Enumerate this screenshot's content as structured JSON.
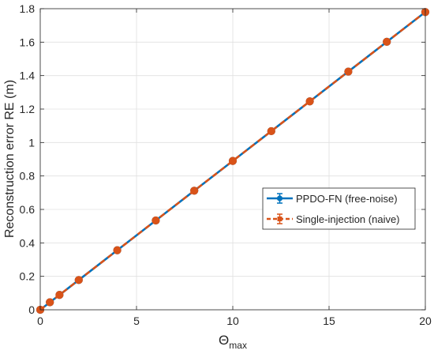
{
  "chart_data": {
    "type": "line",
    "xlabel": "Θ",
    "xlabel_sub": "max",
    "ylabel": "Reconstruction error RE (m)",
    "xlim": [
      0,
      20
    ],
    "ylim": [
      0,
      1.8
    ],
    "xticks": [
      0,
      5,
      10,
      15,
      20
    ],
    "xtick_labels": [
      "0",
      "5",
      "10",
      "15",
      "20"
    ],
    "yticks": [
      0,
      0.2,
      0.4,
      0.6,
      0.8,
      1,
      1.2,
      1.4,
      1.6,
      1.8
    ],
    "ytick_labels": [
      "0",
      "0.2",
      "0.4",
      "0.6",
      "0.8",
      "1",
      "1.2",
      "1.4",
      "1.6",
      "1.8"
    ],
    "grid": true,
    "legend_position": "center-right",
    "x": [
      0,
      0.5,
      1,
      2,
      4,
      6,
      8,
      10,
      12,
      14,
      16,
      18,
      20
    ],
    "series": [
      {
        "name": "PPDO-FN (free-noise)",
        "style": "solid",
        "color": "#0072BD",
        "values": [
          0,
          0.045,
          0.089,
          0.178,
          0.356,
          0.534,
          0.712,
          0.89,
          1.068,
          1.246,
          1.424,
          1.602,
          1.78
        ]
      },
      {
        "name": "Single-injection (naive)",
        "style": "dashed",
        "color": "#D95319",
        "values": [
          0,
          0.045,
          0.089,
          0.178,
          0.356,
          0.534,
          0.712,
          0.89,
          1.068,
          1.246,
          1.424,
          1.602,
          1.78
        ]
      }
    ]
  }
}
